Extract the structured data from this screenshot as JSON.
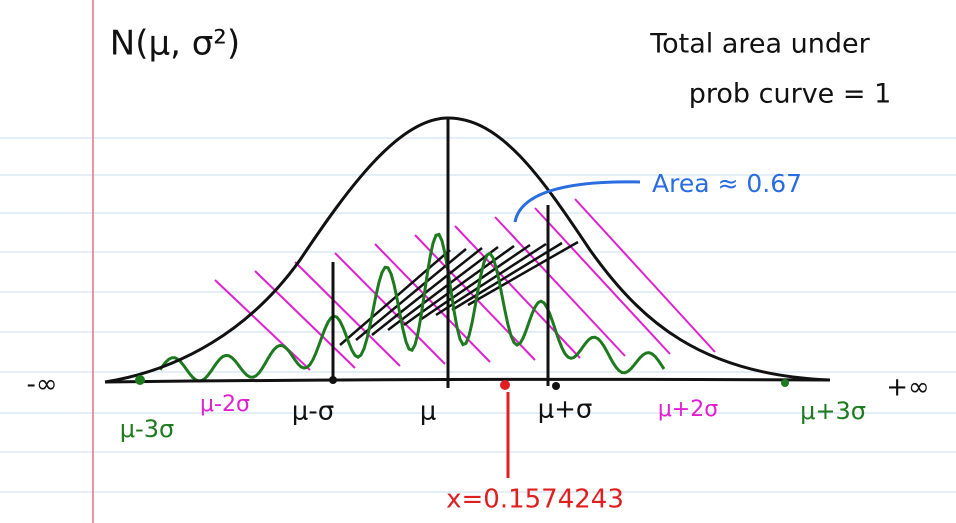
{
  "title": "N(μ, σ²)",
  "note": [
    "Total area under",
    "prob curve = 1"
  ],
  "area_label": "Area ≈ 0.67",
  "axis": {
    "left": "-∞",
    "right": "+∞"
  },
  "points": [
    "μ-3σ",
    "μ-2σ",
    "μ-σ",
    "μ",
    "μ+σ",
    "μ+2σ",
    "μ+3σ"
  ],
  "x_value": "x=0.1574243"
}
